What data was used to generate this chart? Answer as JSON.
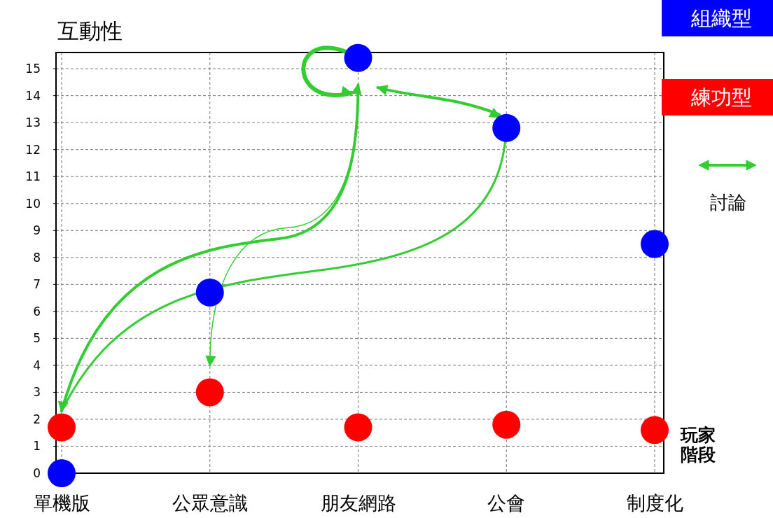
{
  "chart_data": {
    "type": "scatter",
    "ylabel": "互動性",
    "xlabel": "玩家階段",
    "categories": [
      "單機版",
      "公眾意識",
      "朋友網路",
      "公會",
      "制度化"
    ],
    "series": [
      {
        "name": "組織型",
        "color": "#0000ff",
        "values": [
          0,
          6.7,
          15.4,
          12.8,
          8.5
        ]
      },
      {
        "name": "練功型",
        "color": "#ff0000",
        "values": [
          1.7,
          3.0,
          1.7,
          1.8,
          1.6
        ]
      }
    ],
    "ylim": [
      0,
      15.6
    ],
    "yticks": [
      0,
      1,
      2,
      3,
      4,
      5,
      6,
      7,
      8,
      9,
      10,
      11,
      12,
      13,
      14,
      15
    ],
    "grid": true,
    "legend": "right",
    "marker": "circle",
    "annotations": [
      "討論"
    ]
  }
}
